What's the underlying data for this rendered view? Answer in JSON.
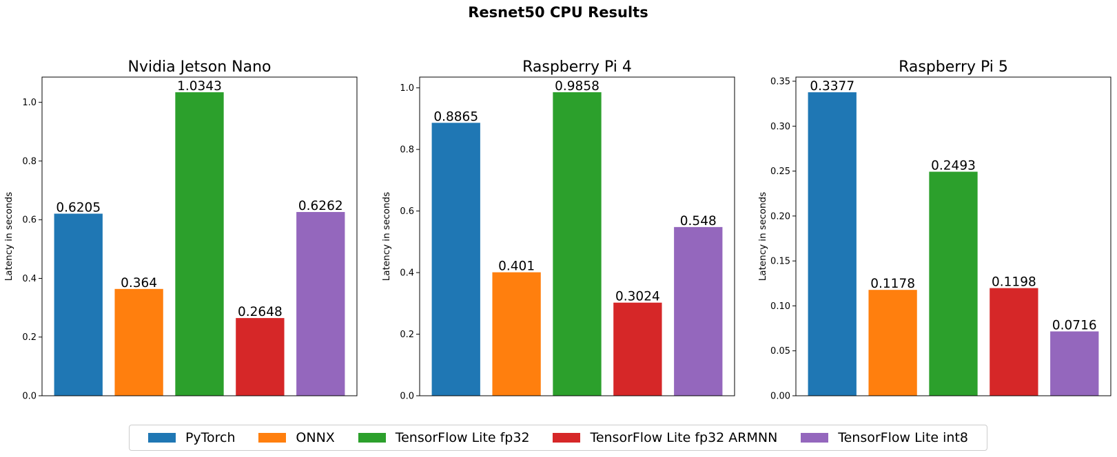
{
  "figure": {
    "title": "Resnet50 CPU Results"
  },
  "legend": {
    "items": [
      {
        "label": "PyTorch",
        "color": "#1f77b4"
      },
      {
        "label": "ONNX",
        "color": "#ff7f0e"
      },
      {
        "label": "TensorFlow Lite fp32",
        "color": "#2ca02c"
      },
      {
        "label": "TensorFlow Lite fp32 ARMNN",
        "color": "#d62728"
      },
      {
        "label": "TensorFlow Lite int8",
        "color": "#9467bd"
      }
    ],
    "placement": "bottom-center"
  },
  "chart_data": [
    {
      "type": "bar",
      "title": "Nvidia Jetson Nano",
      "ylabel": "Latency in seconds",
      "xlabel": "",
      "categories": [
        "PyTorch",
        "ONNX",
        "TensorFlow Lite fp32",
        "TensorFlow Lite fp32 ARMNN",
        "TensorFlow Lite int8"
      ],
      "values": [
        0.6205,
        0.364,
        1.0343,
        0.2648,
        0.6262
      ],
      "value_labels": [
        "0.6205",
        "0.364",
        "1.0343",
        "0.2648",
        "0.6262"
      ],
      "colors": [
        "#1f77b4",
        "#ff7f0e",
        "#2ca02c",
        "#d62728",
        "#9467bd"
      ],
      "ylim": [
        0,
        1.086
      ],
      "yticks": [
        0.0,
        0.2,
        0.4,
        0.6,
        0.8,
        1.0
      ],
      "ytick_labels": [
        "0.0",
        "0.2",
        "0.4",
        "0.6",
        "0.8",
        "1.0"
      ],
      "grid": false
    },
    {
      "type": "bar",
      "title": "Raspberry Pi 4",
      "ylabel": "Latency in seconds",
      "xlabel": "",
      "categories": [
        "PyTorch",
        "ONNX",
        "TensorFlow Lite fp32",
        "TensorFlow Lite fp32 ARMNN",
        "TensorFlow Lite int8"
      ],
      "values": [
        0.8865,
        0.401,
        0.9858,
        0.3024,
        0.548
      ],
      "value_labels": [
        "0.8865",
        "0.401",
        "0.9858",
        "0.3024",
        "0.548"
      ],
      "colors": [
        "#1f77b4",
        "#ff7f0e",
        "#2ca02c",
        "#d62728",
        "#9467bd"
      ],
      "ylim": [
        0,
        1.035
      ],
      "yticks": [
        0.0,
        0.2,
        0.4,
        0.6,
        0.8,
        1.0
      ],
      "ytick_labels": [
        "0.0",
        "0.2",
        "0.4",
        "0.6",
        "0.8",
        "1.0"
      ],
      "grid": false
    },
    {
      "type": "bar",
      "title": "Raspberry Pi 5",
      "ylabel": "Latency in seconds",
      "xlabel": "",
      "categories": [
        "PyTorch",
        "ONNX",
        "TensorFlow Lite fp32",
        "TensorFlow Lite fp32 ARMNN",
        "TensorFlow Lite int8"
      ],
      "values": [
        0.3377,
        0.1178,
        0.2493,
        0.1198,
        0.0716
      ],
      "value_labels": [
        "0.3377",
        "0.1178",
        "0.2493",
        "0.1198",
        "0.0716"
      ],
      "colors": [
        "#1f77b4",
        "#ff7f0e",
        "#2ca02c",
        "#d62728",
        "#9467bd"
      ],
      "ylim": [
        0,
        0.3546
      ],
      "yticks": [
        0.0,
        0.05,
        0.1,
        0.15,
        0.2,
        0.25,
        0.3,
        0.35
      ],
      "ytick_labels": [
        "0.00",
        "0.05",
        "0.10",
        "0.15",
        "0.20",
        "0.25",
        "0.30",
        "0.35"
      ],
      "grid": false
    }
  ]
}
